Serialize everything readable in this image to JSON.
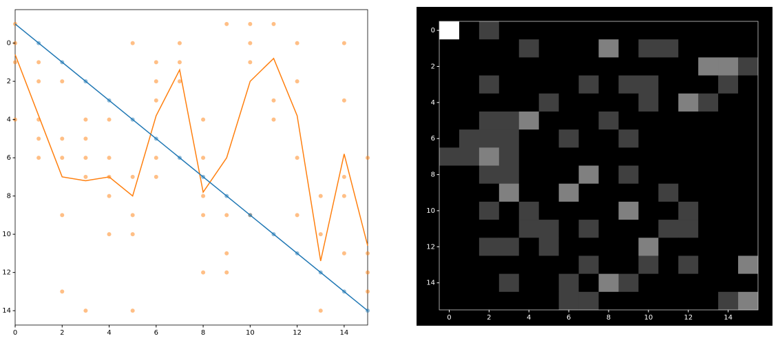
{
  "chart_data": [
    {
      "type": "combo",
      "xlim": [
        0,
        15
      ],
      "ylim": [
        14.75,
        -1.75
      ],
      "xticks": [
        0,
        2,
        4,
        6,
        8,
        10,
        12,
        14
      ],
      "yticks": [
        0,
        2,
        4,
        6,
        8,
        10,
        12,
        14
      ],
      "series": [
        {
          "kind": "scatter",
          "color": "#ff7f0e",
          "x": [
            0,
            0,
            0,
            0,
            1,
            1,
            1,
            1,
            1,
            2,
            2,
            2,
            2,
            2,
            3,
            3,
            3,
            3,
            3,
            4,
            4,
            4,
            4,
            4,
            5,
            5,
            5,
            5,
            5,
            6,
            6,
            6,
            6,
            6,
            7,
            7,
            7,
            8,
            8,
            8,
            8,
            8,
            9,
            9,
            9,
            9,
            10,
            10,
            10,
            10,
            11,
            11,
            11,
            12,
            12,
            12,
            12,
            13,
            13,
            13,
            14,
            14,
            14,
            14,
            14,
            15,
            15,
            15,
            15
          ],
          "values": [
            -1,
            0,
            1,
            4,
            1,
            2,
            4,
            5,
            6,
            2,
            5,
            6,
            9,
            13,
            4,
            5,
            6,
            7,
            14,
            4,
            6,
            7,
            8,
            10,
            0,
            7,
            9,
            10,
            14,
            1,
            2,
            3,
            6,
            7,
            0,
            1,
            2,
            4,
            6,
            8,
            9,
            12,
            -1,
            9,
            11,
            12,
            -1,
            0,
            1,
            9,
            -1,
            3,
            4,
            0,
            2,
            6,
            9,
            8,
            10,
            14,
            0,
            3,
            7,
            8,
            11,
            6,
            11,
            12,
            13
          ]
        },
        {
          "kind": "line",
          "color": "#ff7f0e",
          "x": [
            0,
            1,
            2,
            3,
            4,
            5,
            6,
            7,
            8,
            9,
            10,
            11,
            12,
            13,
            14,
            15
          ],
          "values": [
            0.6,
            3.8,
            7,
            7.2,
            7,
            8,
            3.8,
            1.4,
            7.8,
            6,
            2,
            0.8,
            3.8,
            11.4,
            5.8,
            10.6
          ]
        },
        {
          "kind": "line",
          "color": "#1f77b4",
          "x": [
            0,
            15
          ],
          "values": [
            -1,
            14
          ]
        },
        {
          "kind": "scatter",
          "color": "#1f77b4",
          "x": [
            1,
            2,
            3,
            4,
            5,
            6,
            7,
            8,
            9,
            10,
            11,
            12,
            13,
            14,
            15
          ],
          "values": [
            0,
            1,
            2,
            3,
            4,
            5,
            6,
            7,
            8,
            9,
            10,
            11,
            12,
            13,
            14
          ]
        }
      ]
    },
    {
      "type": "heatmap",
      "xlim": [
        -0.5,
        15.5
      ],
      "ylim": [
        15.5,
        -0.5
      ],
      "xticks": [
        0,
        2,
        4,
        6,
        8,
        10,
        12,
        14
      ],
      "yticks": [
        0,
        2,
        4,
        6,
        8,
        10,
        12,
        14
      ],
      "vmin": 0,
      "vmax": 4,
      "z": [
        [
          4,
          0,
          1,
          0,
          0,
          0,
          0,
          0,
          0,
          0,
          0,
          0,
          0,
          0,
          0,
          0
        ],
        [
          0,
          0,
          0,
          0,
          1,
          0,
          0,
          0,
          2,
          0,
          1,
          1,
          0,
          0,
          0,
          0
        ],
        [
          0,
          0,
          0,
          0,
          0,
          0,
          0,
          0,
          0,
          0,
          0,
          0,
          0,
          2,
          2,
          1
        ],
        [
          0,
          0,
          1,
          0,
          0,
          0,
          0,
          1,
          0,
          1,
          1,
          0,
          0,
          0,
          1,
          0
        ],
        [
          0,
          0,
          0,
          0,
          0,
          1,
          0,
          0,
          0,
          0,
          1,
          0,
          2,
          1,
          0,
          0
        ],
        [
          0,
          0,
          1,
          1,
          2,
          0,
          0,
          0,
          1,
          0,
          0,
          0,
          0,
          0,
          0,
          0
        ],
        [
          0,
          1,
          1,
          1,
          0,
          0,
          1,
          0,
          0,
          1,
          0,
          0,
          0,
          0,
          0,
          0
        ],
        [
          1,
          1,
          2,
          1,
          0,
          0,
          0,
          0,
          0,
          0,
          0,
          0,
          0,
          0,
          0,
          0
        ],
        [
          0,
          0,
          1,
          1,
          0,
          0,
          0,
          2,
          0,
          1,
          0,
          0,
          0,
          0,
          0,
          0
        ],
        [
          0,
          0,
          0,
          2,
          0,
          0,
          2,
          0,
          0,
          0,
          0,
          1,
          0,
          0,
          0,
          0
        ],
        [
          0,
          0,
          1,
          0,
          1,
          0,
          0,
          0,
          0,
          2,
          0,
          0,
          1,
          0,
          0,
          0
        ],
        [
          0,
          0,
          0,
          0,
          1,
          1,
          0,
          1,
          0,
          0,
          0,
          1,
          1,
          0,
          0,
          0
        ],
        [
          0,
          0,
          1,
          1,
          0,
          1,
          0,
          0,
          0,
          0,
          2,
          0,
          0,
          0,
          0,
          0
        ],
        [
          0,
          0,
          0,
          0,
          0,
          0,
          0,
          1,
          0,
          0,
          1,
          0,
          1,
          0,
          0,
          2
        ],
        [
          0,
          0,
          0,
          1,
          0,
          0,
          1,
          0,
          2,
          1,
          0,
          0,
          0,
          0,
          0,
          0
        ],
        [
          0,
          0,
          0,
          0,
          0,
          0,
          1,
          1,
          0,
          0,
          0,
          0,
          0,
          0,
          1,
          2
        ]
      ]
    }
  ]
}
